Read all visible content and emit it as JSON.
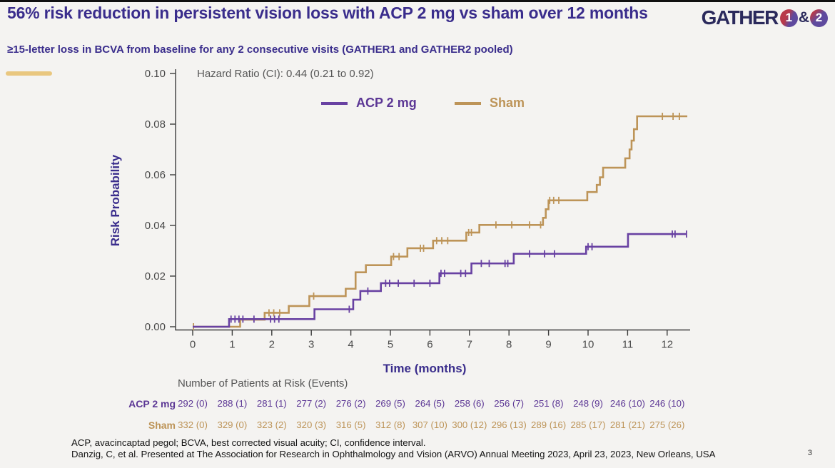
{
  "page": {
    "background": "#f4f3f1",
    "top_bar_color": "#101010",
    "accent_dash_color": "#e9c77f",
    "page_number": "3"
  },
  "header": {
    "title": "56% risk reduction in persistent vision loss with ACP 2 mg vs sham over 12 months",
    "subtitle": "≥15-letter loss in BCVA from baseline for any 2 consecutive visits (GATHER1 and GATHER2 pooled)",
    "title_color": "#3a2d8c"
  },
  "logo": {
    "name": "GATHER",
    "badge1": "1",
    "amp": "&",
    "badge2": "2"
  },
  "chart_data": {
    "type": "line",
    "style": "kaplan-meier-step",
    "annotation": "Hazard Ratio (CI): 0.44 (0.21 to 0.92)",
    "xlabel": "Time (months)",
    "ylabel": "Risk Probability",
    "xlim": [
      0,
      12
    ],
    "ylim": [
      0.0,
      0.1
    ],
    "grid": false,
    "legend_position": "top-center",
    "x_ticks": [
      "0",
      "1",
      "2",
      "3",
      "4",
      "5",
      "6",
      "7",
      "8",
      "9",
      "10",
      "11",
      "12"
    ],
    "y_ticks": [
      "0.00",
      "0.02",
      "0.04",
      "0.06",
      "0.08",
      "0.10"
    ],
    "series": [
      {
        "name": "ACP 2 mg",
        "color": "#6841a2",
        "steps": [
          [
            0,
            0
          ],
          [
            0.92,
            0.003
          ],
          [
            3.08,
            0.0069
          ],
          [
            4.06,
            0.0107
          ],
          [
            4.24,
            0.0141
          ],
          [
            4.76,
            0.0172
          ],
          [
            6.24,
            0.0211
          ],
          [
            7.05,
            0.025
          ],
          [
            8.12,
            0.0288
          ],
          [
            9.95,
            0.0316
          ],
          [
            11.01,
            0.0366
          ]
        ],
        "end_x": 12.49,
        "censor_ticks": [
          0.97,
          1.07,
          1.17,
          1.27,
          1.55,
          1.97,
          2.07,
          2.18,
          3.96,
          4.43,
          4.88,
          4.98,
          5.2,
          5.6,
          6.0,
          6.28,
          6.37,
          6.78,
          6.9,
          7.3,
          7.5,
          7.9,
          7.97,
          8.52,
          8.9,
          9.15,
          10.0,
          10.1,
          12.13,
          12.2,
          12.49
        ]
      },
      {
        "name": "Sham",
        "color": "#bd9458",
        "steps": [
          [
            0,
            0
          ],
          [
            1.2,
            0.0028
          ],
          [
            1.82,
            0.0055
          ],
          [
            2.43,
            0.0082
          ],
          [
            2.95,
            0.0121
          ],
          [
            3.87,
            0.015
          ],
          [
            4.12,
            0.0215
          ],
          [
            4.38,
            0.0243
          ],
          [
            5.02,
            0.0277
          ],
          [
            5.43,
            0.031
          ],
          [
            6.08,
            0.034
          ],
          [
            6.92,
            0.0372
          ],
          [
            7.25,
            0.0402
          ],
          [
            8.86,
            0.043
          ],
          [
            8.93,
            0.0464
          ],
          [
            9.0,
            0.0499
          ],
          [
            9.98,
            0.0532
          ],
          [
            10.22,
            0.056
          ],
          [
            10.3,
            0.059
          ],
          [
            10.38,
            0.0628
          ],
          [
            10.94,
            0.0665
          ],
          [
            11.05,
            0.07
          ],
          [
            11.1,
            0.0735
          ],
          [
            11.16,
            0.078
          ],
          [
            11.24,
            0.0831
          ]
        ],
        "end_x": 12.51,
        "censor_ticks": [
          0.02,
          1.93,
          2.05,
          2.2,
          3.06,
          5.08,
          5.22,
          5.76,
          5.84,
          6.17,
          6.3,
          6.45,
          6.98,
          7.05,
          7.67,
          8.07,
          8.52,
          8.8,
          9.03,
          9.13,
          9.26,
          11.88,
          12.15,
          12.31
        ]
      }
    ]
  },
  "risk_table": {
    "header": "Number of Patients at Risk (Events)",
    "rows": [
      {
        "label": "ACP 2 mg",
        "color": "#5c3795",
        "values": [
          "292 (0)",
          "288 (1)",
          "281 (1)",
          "277 (2)",
          "276 (2)",
          "269 (5)",
          "264 (5)",
          "258 (6)",
          "256 (7)",
          "251 (8)",
          "248 (9)",
          "246 (10)",
          "246 (10)"
        ]
      },
      {
        "label": "Sham",
        "color": "#bd9458",
        "values": [
          "332 (0)",
          "329 (0)",
          "323 (2)",
          "320 (3)",
          "316 (5)",
          "312 (8)",
          "307 (10)",
          "300 (12)",
          "296 (13)",
          "289 (16)",
          "285 (17)",
          "281 (21)",
          "275 (26)"
        ]
      }
    ]
  },
  "footnotes": {
    "line1": "ACP, avacincaptad pegol; BCVA, best corrected visual acuity; CI, confidence interval.",
    "line2": "Danzig, C, et al. Presented at The Association for Research in Ophthalmology and Vision (ARVO) Annual Meeting 2023, April 23, 2023, New Orleans, USA"
  }
}
